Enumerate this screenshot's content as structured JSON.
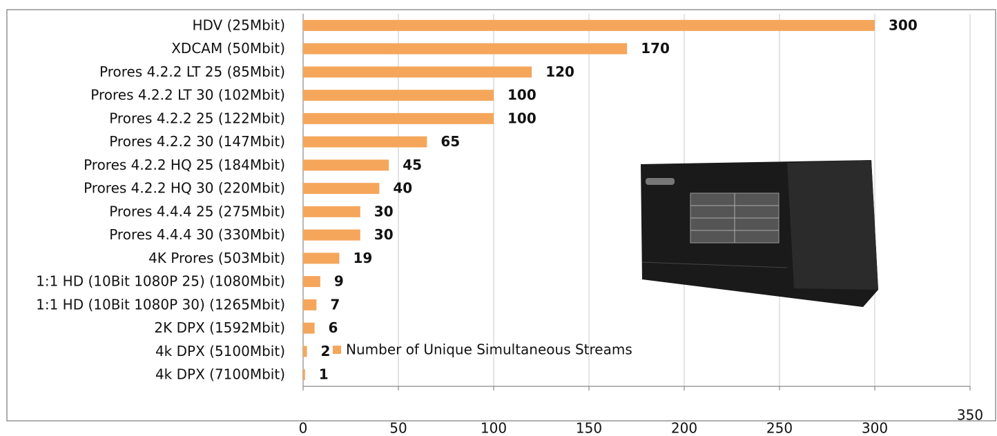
{
  "chart_data": {
    "type": "bar",
    "orientation": "horizontal",
    "categories": [
      "HDV (25Mbit)",
      "XDCAM (50Mbit)",
      "Prores 4.2.2 LT 25 (85Mbit)",
      "Prores 4.2.2 LT 30 (102Mbit)",
      "Prores 4.2.2 25 (122Mbit)",
      "Prores 4.2.2 30 (147Mbit)",
      "Prores 4.2.2 HQ 25 (184Mbit)",
      "Prores 4.2.2 HQ 30 (220Mbit)",
      "Prores 4.4.4 25 (275Mbit)",
      "Prores 4.4.4 30 (330Mbit)",
      "4K Prores (503Mbit)",
      "1:1 HD (10Bit 1080P 25) (1080Mbit)",
      "1:1 HD (10Bit 1080P 30) (1265Mbit)",
      "2K DPX (1592Mbit)",
      "4k DPX (5100Mbit)",
      "4k DPX (7100Mbit)"
    ],
    "series": [
      {
        "name": "Number of Unique Simultaneous Streams",
        "color": "#f5a65b",
        "values": [
          300,
          170,
          120,
          100,
          100,
          65,
          45,
          40,
          30,
          30,
          19,
          9,
          7,
          6,
          2,
          1
        ]
      }
    ],
    "xlim": [
      0,
      350
    ],
    "xticks": [
      0,
      50,
      100,
      150,
      200,
      250,
      300,
      350
    ],
    "grid": true
  }
}
